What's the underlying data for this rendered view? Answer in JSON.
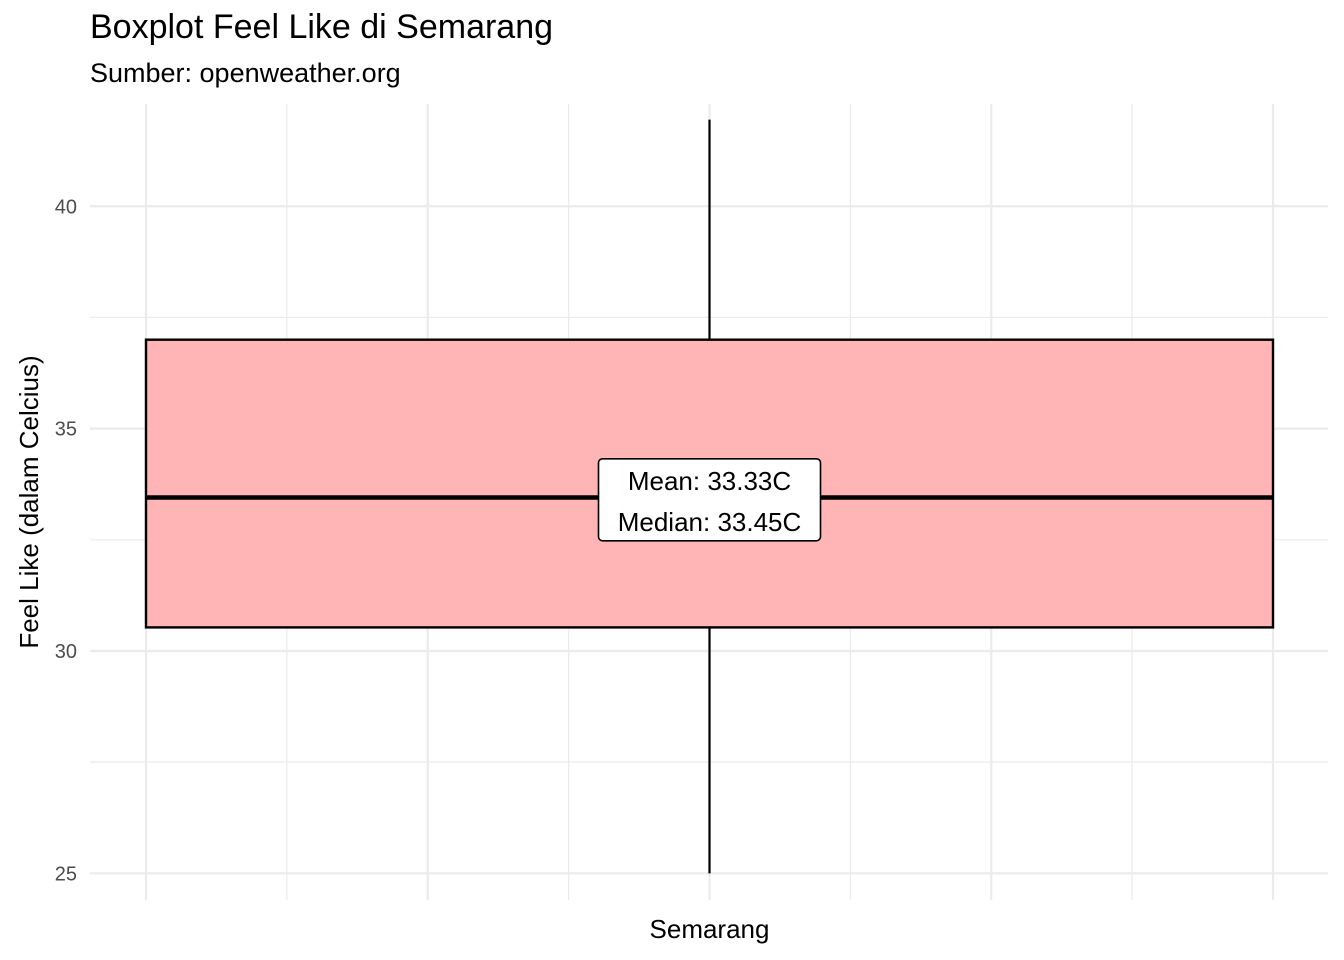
{
  "chart_data": {
    "type": "box",
    "title": "Boxplot Feel Like di Semarang",
    "subtitle": "Sumber: openweather.org",
    "xlabel": "Semarang",
    "ylabel": "Feel Like (dalam Celcius)",
    "ylim": [
      24.4,
      42.3
    ],
    "yticks": [
      25,
      30,
      35,
      40
    ],
    "categories": [
      "Semarang"
    ],
    "boxes": [
      {
        "category": "Semarang",
        "min": 25.0,
        "q1": 30.53,
        "median": 33.45,
        "q3": 37.0,
        "max": 41.95,
        "mean_label": "Mean: 33.33C",
        "median_label": "Median: 33.45C",
        "label_y": 33.4
      }
    ],
    "fill_color": "#ffb3b5",
    "grid": true,
    "legend": "none"
  }
}
